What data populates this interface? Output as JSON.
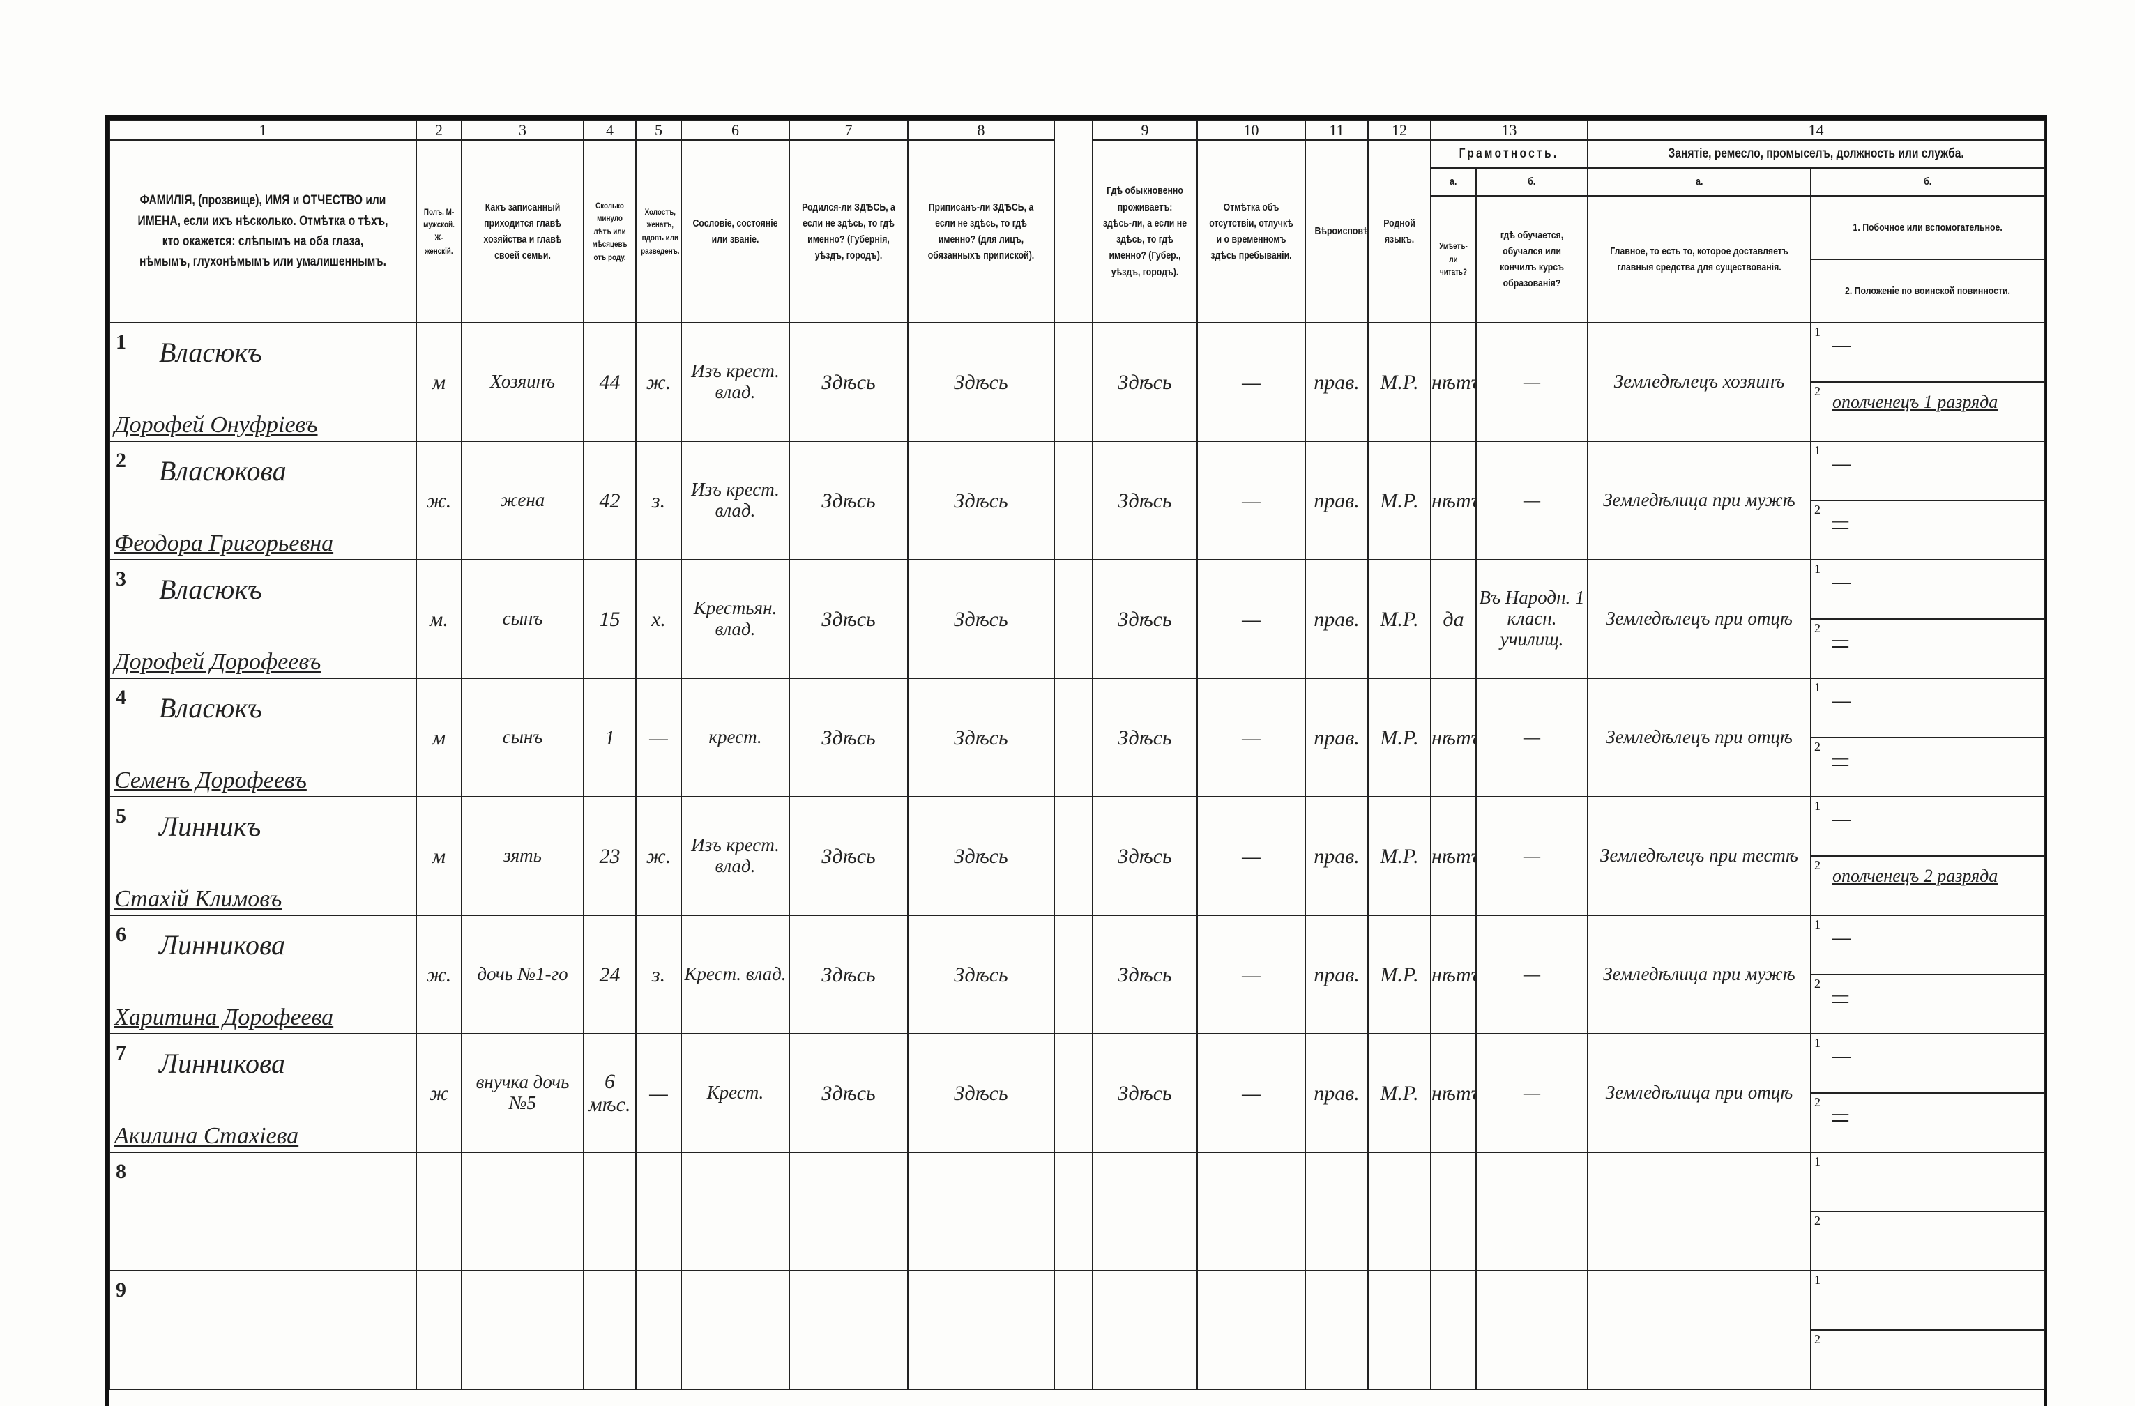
{
  "header": {
    "col_numbers": [
      "1",
      "2",
      "3",
      "4",
      "5",
      "6",
      "7",
      "8",
      "",
      "9",
      "10",
      "11",
      "12",
      "13",
      "14"
    ],
    "literacy_title": "Грамотность.",
    "occupation_title": "Занятіе, ремесло, промыселъ, должность или служба.",
    "sub_a": "а.",
    "sub_b": "б.",
    "col1": "ФАМИЛІЯ, (прозвище), ИМЯ и ОТЧЕСТВО или ИМЕНА, если ихъ нѣсколько. Отмѣтка о тѣхъ, кто окажется: слѣпымъ на оба глаза, нѣмымъ, глухонѣмымъ или умалишеннымъ.",
    "col2": "Полъ. М-мужской. Ж-женскій.",
    "col3": "Какъ записанный приходится главѣ хозяйства и главѣ своей семьи.",
    "col4": "Сколько минуло лѣтъ или мѣсяцевъ отъ роду.",
    "col5": "Холостъ, женатъ, вдовъ или разведенъ.",
    "col6": "Сословіе, состояніе или званіе.",
    "col7": "Родился-ли ЗДѢСЬ, а если не здѣсь, то гдѣ именно? (Губернія, уѣздъ, городъ).",
    "col8": "Приписанъ-ли ЗДѢСЬ, а если не здѣсь, то гдѣ именно? (для лицъ, обязанныхъ припиской).",
    "col9": "Гдѣ обыкновенно проживаетъ: здѣсь-ли, а если не здѣсь, то гдѣ именно? (Губер., уѣздъ, городъ).",
    "col10": "Отмѣтка объ отсутствіи, отлучкѣ и о временномъ здѣсь пребываніи.",
    "col11": "Вѣроисповѣданіе.",
    "col12": "Родной языкъ.",
    "col13a": "Умѣетъ-ли читать?",
    "col13b": "гдѣ обучается, обучался или кончилъ курсъ образованія?",
    "col14a": "Главное, то есть то, которое доставляетъ главныя средства для существованія.",
    "col14b1": "1. Побочное или вспомогательное.",
    "col14b2": "2. Положеніе по воинской повинности."
  },
  "rows": [
    {
      "no": "1",
      "surname": "Власюкъ",
      "given": "Дорофей Онуфріевъ",
      "sex": "м",
      "relation": "Хозяинъ",
      "age": "44",
      "marital": "ж.",
      "estate": "Изъ крест. влад.",
      "born": "Здѣсь",
      "registered": "Здѣсь",
      "resides": "Здѣсь",
      "absence": "—",
      "religion": "прав.",
      "language": "М.Р.",
      "reads": "нѣтъ",
      "school": "—",
      "main_occ": "Земледѣлецъ хозяинъ",
      "side_occ": "—",
      "military": "ополченецъ 1 разряда"
    },
    {
      "no": "2",
      "surname": "Власюкова",
      "given": "Феодора Григорьевна",
      "sex": "ж.",
      "relation": "жена",
      "age": "42",
      "marital": "з.",
      "estate": "Изъ крест. влад.",
      "born": "Здѣсь",
      "registered": "Здѣсь",
      "resides": "Здѣсь",
      "absence": "—",
      "religion": "прав.",
      "language": "М.Р.",
      "reads": "нѣтъ",
      "school": "—",
      "main_occ": "Земледѣлица при мужѣ",
      "side_occ": "—",
      "military": "—"
    },
    {
      "no": "3",
      "surname": "Власюкъ",
      "given": "Дорофей Дорофеевъ",
      "sex": "м.",
      "relation": "сынъ",
      "age": "15",
      "marital": "х.",
      "estate": "Крестьян. влад.",
      "born": "Здѣсь",
      "registered": "Здѣсь",
      "resides": "Здѣсь",
      "absence": "—",
      "religion": "прав.",
      "language": "М.Р.",
      "reads": "да",
      "school": "Въ Народн. 1 класн. училищ.",
      "main_occ": "Земледѣлецъ при отцѣ",
      "side_occ": "—",
      "military": "—"
    },
    {
      "no": "4",
      "surname": "Власюкъ",
      "given": "Семенъ Дорофеевъ",
      "sex": "м",
      "relation": "сынъ",
      "age": "1",
      "marital": "—",
      "estate": "крест.",
      "born": "Здѣсь",
      "registered": "Здѣсь",
      "resides": "Здѣсь",
      "absence": "—",
      "religion": "прав.",
      "language": "М.Р.",
      "reads": "нѣтъ",
      "school": "—",
      "main_occ": "Земледѣлецъ при отцѣ",
      "side_occ": "—",
      "military": "—"
    },
    {
      "no": "5",
      "surname": "Линникъ",
      "given": "Стахій Климовъ",
      "sex": "м",
      "relation": "зять",
      "age": "23",
      "marital": "ж.",
      "estate": "Изъ крест. влад.",
      "born": "Здѣсь",
      "registered": "Здѣсь",
      "resides": "Здѣсь",
      "absence": "—",
      "religion": "прав.",
      "language": "М.Р.",
      "reads": "нѣтъ",
      "school": "—",
      "main_occ": "Земледѣлецъ при тестѣ",
      "side_occ": "—",
      "military": "ополченецъ 2 разряда"
    },
    {
      "no": "6",
      "surname": "Линникова",
      "given": "Харитина Дорофеева",
      "sex": "ж.",
      "relation": "дочь №1-го",
      "age": "24",
      "marital": "з.",
      "estate": "Крест. влад.",
      "born": "Здѣсь",
      "registered": "Здѣсь",
      "resides": "Здѣсь",
      "absence": "—",
      "religion": "прав.",
      "language": "М.Р.",
      "reads": "нѣтъ",
      "school": "—",
      "main_occ": "Земледѣлица при мужѣ",
      "side_occ": "—",
      "military": "—"
    },
    {
      "no": "7",
      "surname": "Линникова",
      "given": "Акилина Стахіева",
      "sex": "ж",
      "relation": "внучка дочь №5",
      "age": "6 мѣс.",
      "marital": "—",
      "estate": "Крест.",
      "born": "Здѣсь",
      "registered": "Здѣсь",
      "resides": "Здѣсь",
      "absence": "—",
      "religion": "прав.",
      "language": "М.Р.",
      "reads": "нѣтъ",
      "school": "—",
      "main_occ": "Земледѣлица при отцѣ",
      "side_occ": "—",
      "military": "—"
    },
    {
      "no": "8"
    },
    {
      "no": "9"
    }
  ],
  "subrow_labels": [
    "1",
    "2"
  ]
}
